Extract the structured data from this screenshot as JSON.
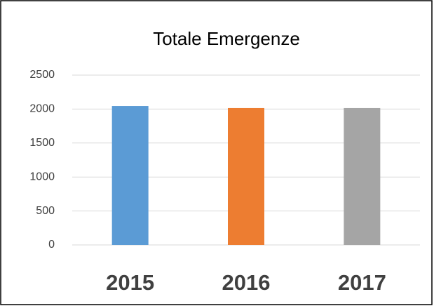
{
  "chart_data": {
    "type": "bar",
    "title": "Totale Emergenze",
    "categories": [
      "2015",
      "2016",
      "2017"
    ],
    "values": [
      2045,
      2015,
      2015
    ],
    "colors": [
      "#5b9bd5",
      "#ed7d31",
      "#a5a5a5"
    ],
    "ylim": [
      0,
      2500
    ],
    "yticks": [
      0,
      500,
      1000,
      1500,
      2000,
      2500
    ],
    "grid": true
  }
}
